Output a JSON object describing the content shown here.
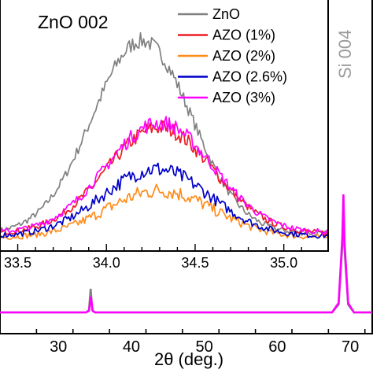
{
  "chart_data": [
    {
      "type": "line",
      "role": "main",
      "xlabel": "2θ (deg.)",
      "ylabel": "",
      "xlim": [
        22,
        73
      ],
      "x_ticks": [
        30,
        40,
        50,
        60,
        70
      ],
      "annotations": [
        "Si 004"
      ],
      "series": [
        {
          "name": "ZnO",
          "color": "#808080",
          "points": [
            [
              22,
              0
            ],
            [
              33.8,
              0
            ],
            [
              34.2,
              3
            ],
            [
              34.42,
              30
            ],
            [
              34.65,
              3
            ],
            [
              35,
              0
            ],
            [
              67.5,
              0
            ],
            [
              68.4,
              10
            ],
            [
              68.9,
              85
            ],
            [
              69.05,
              130
            ],
            [
              69.2,
              80
            ],
            [
              69.7,
              10
            ],
            [
              70.5,
              0
            ],
            [
              73,
              0
            ]
          ]
        },
        {
          "name": "AZO (3%)",
          "color": "#ff00ff",
          "points": [
            [
              22,
              0
            ],
            [
              33.8,
              0
            ],
            [
              34.2,
              2
            ],
            [
              34.45,
              20
            ],
            [
              34.7,
              2
            ],
            [
              35,
              0
            ],
            [
              67.5,
              0
            ],
            [
              68.4,
              12
            ],
            [
              68.9,
              95
            ],
            [
              69.05,
              150
            ],
            [
              69.2,
              90
            ],
            [
              69.7,
              12
            ],
            [
              70.5,
              0
            ],
            [
              73,
              0
            ]
          ]
        }
      ]
    },
    {
      "type": "line",
      "role": "inset",
      "title": "ZnO 002",
      "xlim": [
        33.4,
        35.25
      ],
      "x_ticks": [
        "33.5",
        "34.0",
        "34.5",
        "35.0"
      ],
      "series": [
        {
          "name": "ZnO",
          "color": "#808080",
          "peak": 34.2,
          "height": 245,
          "width": 0.28,
          "base": 5
        },
        {
          "name": "AZO (1%)",
          "color": "#ee1c25",
          "peak": 34.3,
          "height": 135,
          "width": 0.3,
          "base": 5
        },
        {
          "name": "AZO (2%)",
          "color": "#ff8c1a",
          "peak": 34.3,
          "height": 60,
          "width": 0.3,
          "base": 0
        },
        {
          "name": "AZO (2.6%)",
          "color": "#0000c8",
          "peak": 34.28,
          "height": 85,
          "width": 0.3,
          "base": 2
        },
        {
          "name": "AZO (3%)",
          "color": "#ff00ff",
          "peak": 34.3,
          "height": 140,
          "width": 0.3,
          "base": 6
        }
      ]
    }
  ]
}
